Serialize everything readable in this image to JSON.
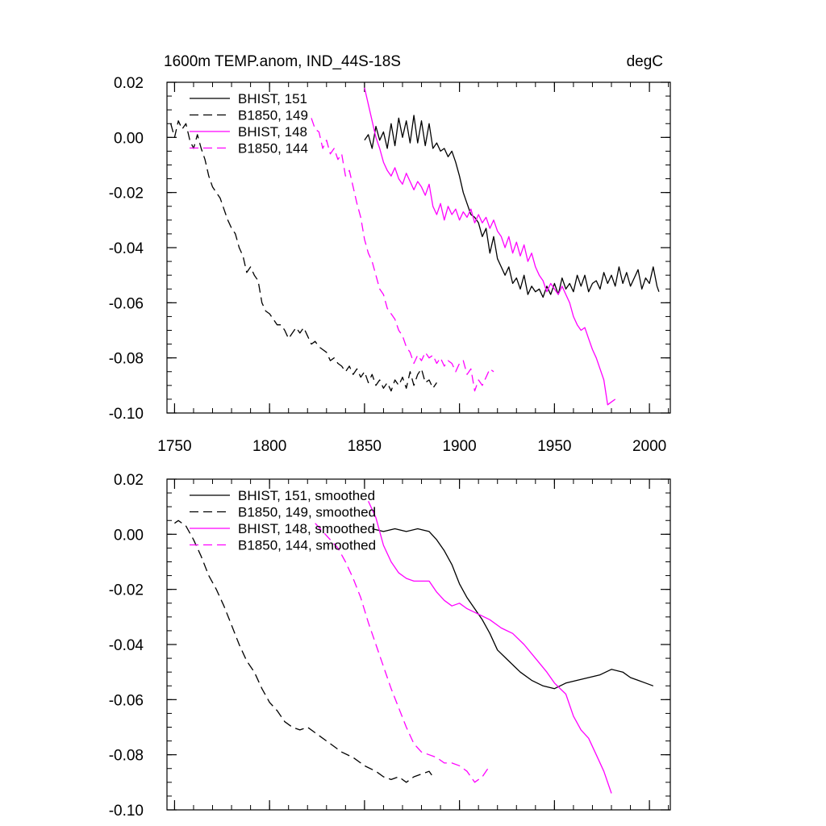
{
  "chart_data": [
    {
      "type": "line",
      "title": "1600m TEMP.anom, IND_44S-18S",
      "units": "degC",
      "xlim": [
        1746,
        2011
      ],
      "ylim": [
        -0.1,
        0.02
      ],
      "x_ticks": [
        "1750",
        "1800",
        "1850",
        "1900",
        "1950",
        "2000"
      ],
      "y_ticks": [
        "0.02",
        "0.00",
        "-0.02",
        "-0.04",
        "-0.06",
        "-0.08",
        "-0.10"
      ],
      "legend_position": "top-left",
      "series": [
        {
          "name": "BHIST, 151",
          "color": "#000000",
          "dash": "solid",
          "x": [
            1850,
            1852,
            1854,
            1856,
            1858,
            1860,
            1862,
            1864,
            1866,
            1868,
            1870,
            1872,
            1874,
            1876,
            1878,
            1880,
            1882,
            1884,
            1886,
            1888,
            1890,
            1892,
            1894,
            1896,
            1898,
            1900,
            1902,
            1904,
            1906,
            1908,
            1910,
            1912,
            1914,
            1916,
            1918,
            1920,
            1922,
            1924,
            1926,
            1928,
            1930,
            1932,
            1934,
            1936,
            1938,
            1940,
            1942,
            1944,
            1946,
            1948,
            1950,
            1952,
            1954,
            1956,
            1958,
            1960,
            1962,
            1964,
            1966,
            1968,
            1970,
            1972,
            1974,
            1976,
            1978,
            1980,
            1982,
            1984,
            1986,
            1988,
            1990,
            1992,
            1994,
            1996,
            1998,
            2000,
            2002,
            2004,
            2005
          ],
          "y": [
            -0.001,
            0.001,
            -0.004,
            0.004,
            -0.001,
            0.002,
            -0.004,
            0.005,
            -0.003,
            0.007,
            0.0,
            0.006,
            -0.002,
            0.008,
            -0.002,
            0.006,
            -0.003,
            0.005,
            -0.004,
            -0.002,
            -0.005,
            -0.004,
            -0.007,
            -0.005,
            -0.009,
            -0.014,
            -0.02,
            -0.024,
            -0.028,
            -0.029,
            -0.031,
            -0.036,
            -0.033,
            -0.042,
            -0.036,
            -0.044,
            -0.047,
            -0.05,
            -0.047,
            -0.053,
            -0.051,
            -0.055,
            -0.05,
            -0.057,
            -0.054,
            -0.056,
            -0.055,
            -0.058,
            -0.054,
            -0.057,
            -0.053,
            -0.057,
            -0.051,
            -0.055,
            -0.053,
            -0.056,
            -0.05,
            -0.054,
            -0.05,
            -0.056,
            -0.053,
            -0.052,
            -0.055,
            -0.049,
            -0.053,
            -0.05,
            -0.054,
            -0.047,
            -0.053,
            -0.049,
            -0.054,
            -0.051,
            -0.048,
            -0.055,
            -0.051,
            -0.053,
            -0.047,
            -0.054,
            -0.056
          ]
        },
        {
          "name": "B1850, 149",
          "color": "#000000",
          "dash": "dashed",
          "x": [
            1748,
            1750,
            1752,
            1754,
            1756,
            1758,
            1760,
            1762,
            1764,
            1766,
            1768,
            1770,
            1772,
            1774,
            1776,
            1778,
            1780,
            1782,
            1784,
            1786,
            1788,
            1790,
            1792,
            1794,
            1796,
            1798,
            1800,
            1802,
            1804,
            1806,
            1808,
            1810,
            1812,
            1814,
            1816,
            1818,
            1820,
            1822,
            1824,
            1826,
            1828,
            1830,
            1832,
            1834,
            1836,
            1838,
            1840,
            1842,
            1844,
            1846,
            1848,
            1850,
            1852,
            1854,
            1856,
            1858,
            1860,
            1862,
            1864,
            1866,
            1868,
            1870,
            1872,
            1874,
            1876,
            1878,
            1880,
            1882,
            1884,
            1886,
            1888
          ],
          "y": [
            0.005,
            0.0,
            0.006,
            0.003,
            0.005,
            -0.001,
            -0.004,
            0.001,
            -0.004,
            -0.008,
            -0.014,
            -0.018,
            -0.02,
            -0.022,
            -0.026,
            -0.03,
            -0.033,
            -0.035,
            -0.04,
            -0.043,
            -0.049,
            -0.047,
            -0.05,
            -0.052,
            -0.06,
            -0.063,
            -0.064,
            -0.066,
            -0.068,
            -0.068,
            -0.07,
            -0.073,
            -0.071,
            -0.069,
            -0.071,
            -0.069,
            -0.072,
            -0.075,
            -0.074,
            -0.076,
            -0.077,
            -0.078,
            -0.081,
            -0.08,
            -0.082,
            -0.083,
            -0.085,
            -0.083,
            -0.086,
            -0.084,
            -0.087,
            -0.085,
            -0.089,
            -0.086,
            -0.09,
            -0.088,
            -0.091,
            -0.089,
            -0.092,
            -0.088,
            -0.09,
            -0.087,
            -0.091,
            -0.085,
            -0.09,
            -0.086,
            -0.084,
            -0.089,
            -0.088,
            -0.091,
            -0.089
          ]
        },
        {
          "name": "BHIST, 148",
          "color": "#ff00ff",
          "dash": "solid",
          "x": [
            1850,
            1852,
            1854,
            1856,
            1858,
            1860,
            1862,
            1864,
            1866,
            1868,
            1870,
            1872,
            1874,
            1876,
            1878,
            1880,
            1882,
            1884,
            1886,
            1888,
            1890,
            1892,
            1894,
            1896,
            1898,
            1900,
            1902,
            1904,
            1906,
            1908,
            1910,
            1912,
            1914,
            1916,
            1918,
            1920,
            1922,
            1924,
            1926,
            1928,
            1930,
            1932,
            1934,
            1936,
            1938,
            1940,
            1942,
            1944,
            1946,
            1948,
            1950,
            1952,
            1954,
            1956,
            1958,
            1960,
            1962,
            1964,
            1966,
            1968,
            1970,
            1972,
            1974,
            1976,
            1978,
            1980,
            1982
          ],
          "y": [
            0.018,
            0.012,
            0.006,
            0.0,
            -0.004,
            -0.009,
            -0.012,
            -0.014,
            -0.011,
            -0.015,
            -0.017,
            -0.013,
            -0.016,
            -0.019,
            -0.016,
            -0.018,
            -0.021,
            -0.017,
            -0.025,
            -0.028,
            -0.024,
            -0.03,
            -0.025,
            -0.028,
            -0.026,
            -0.03,
            -0.027,
            -0.029,
            -0.026,
            -0.031,
            -0.028,
            -0.031,
            -0.029,
            -0.033,
            -0.03,
            -0.034,
            -0.036,
            -0.04,
            -0.036,
            -0.042,
            -0.038,
            -0.043,
            -0.039,
            -0.045,
            -0.042,
            -0.047,
            -0.05,
            -0.052,
            -0.056,
            -0.053,
            -0.055,
            -0.057,
            -0.054,
            -0.057,
            -0.06,
            -0.065,
            -0.068,
            -0.07,
            -0.069,
            -0.073,
            -0.077,
            -0.08,
            -0.084,
            -0.088,
            -0.097,
            -0.096,
            -0.095
          ]
        },
        {
          "name": "B1850, 144",
          "color": "#ff00ff",
          "dash": "dashed",
          "x": [
            1822,
            1824,
            1826,
            1828,
            1830,
            1832,
            1834,
            1836,
            1838,
            1840,
            1842,
            1844,
            1846,
            1848,
            1850,
            1852,
            1854,
            1856,
            1858,
            1860,
            1862,
            1864,
            1866,
            1868,
            1870,
            1872,
            1874,
            1876,
            1878,
            1880,
            1882,
            1884,
            1886,
            1888,
            1890,
            1892,
            1894,
            1896,
            1898,
            1900,
            1902,
            1904,
            1906,
            1908,
            1910,
            1912,
            1914,
            1916,
            1918
          ],
          "y": [
            0.007,
            0.003,
            0.002,
            -0.004,
            -0.001,
            -0.006,
            -0.004,
            -0.008,
            -0.006,
            -0.014,
            -0.012,
            -0.018,
            -0.024,
            -0.029,
            -0.037,
            -0.042,
            -0.045,
            -0.05,
            -0.055,
            -0.057,
            -0.062,
            -0.064,
            -0.066,
            -0.07,
            -0.072,
            -0.076,
            -0.078,
            -0.082,
            -0.079,
            -0.081,
            -0.078,
            -0.08,
            -0.079,
            -0.082,
            -0.08,
            -0.083,
            -0.081,
            -0.082,
            -0.085,
            -0.082,
            -0.081,
            -0.086,
            -0.084,
            -0.092,
            -0.088,
            -0.09,
            -0.087,
            -0.084,
            -0.085
          ]
        }
      ]
    },
    {
      "type": "line",
      "title": "",
      "xlim": [
        1746,
        2011
      ],
      "ylim": [
        -0.1,
        0.02
      ],
      "y_ticks": [
        "0.02",
        "0.00",
        "-0.02",
        "-0.04",
        "-0.06",
        "-0.08",
        "-0.10"
      ],
      "legend_position": "top-left",
      "series": [
        {
          "name": "BHIST, 151, smoothed",
          "color": "#000000",
          "dash": "solid",
          "x": [
            1854,
            1860,
            1866,
            1872,
            1878,
            1884,
            1888,
            1892,
            1896,
            1900,
            1904,
            1908,
            1912,
            1916,
            1920,
            1926,
            1932,
            1938,
            1944,
            1950,
            1956,
            1962,
            1968,
            1974,
            1980,
            1986,
            1990,
            1994,
            1998,
            2002
          ],
          "y": [
            0.002,
            0.001,
            0.002,
            0.001,
            0.002,
            0.001,
            -0.002,
            -0.006,
            -0.011,
            -0.018,
            -0.023,
            -0.027,
            -0.031,
            -0.036,
            -0.042,
            -0.046,
            -0.05,
            -0.053,
            -0.055,
            -0.056,
            -0.054,
            -0.053,
            -0.052,
            -0.051,
            -0.049,
            -0.05,
            -0.052,
            -0.053,
            -0.054,
            -0.055
          ]
        },
        {
          "name": "B1850, 149, smoothed",
          "color": "#000000",
          "dash": "dashed",
          "x": [
            1750,
            1752,
            1756,
            1760,
            1764,
            1768,
            1772,
            1776,
            1780,
            1784,
            1788,
            1792,
            1796,
            1800,
            1804,
            1808,
            1812,
            1816,
            1820,
            1826,
            1832,
            1838,
            1844,
            1850,
            1856,
            1860,
            1864,
            1868,
            1872,
            1876,
            1880,
            1884,
            1886
          ],
          "y": [
            0.004,
            0.005,
            0.003,
            -0.002,
            -0.008,
            -0.015,
            -0.02,
            -0.026,
            -0.033,
            -0.04,
            -0.046,
            -0.05,
            -0.056,
            -0.061,
            -0.064,
            -0.068,
            -0.07,
            -0.071,
            -0.07,
            -0.073,
            -0.076,
            -0.079,
            -0.081,
            -0.084,
            -0.086,
            -0.088,
            -0.089,
            -0.088,
            -0.09,
            -0.088,
            -0.087,
            -0.086,
            -0.088
          ]
        },
        {
          "name": "BHIST, 148, smoothed",
          "color": "#ff00ff",
          "dash": "solid",
          "x": [
            1852,
            1856,
            1860,
            1864,
            1868,
            1872,
            1876,
            1880,
            1884,
            1888,
            1892,
            1896,
            1900,
            1904,
            1910,
            1916,
            1922,
            1928,
            1934,
            1940,
            1946,
            1950,
            1956,
            1960,
            1964,
            1968,
            1972,
            1976,
            1980
          ],
          "y": [
            0.012,
            0.006,
            -0.004,
            -0.01,
            -0.014,
            -0.016,
            -0.017,
            -0.017,
            -0.017,
            -0.021,
            -0.024,
            -0.026,
            -0.025,
            -0.027,
            -0.029,
            -0.031,
            -0.034,
            -0.036,
            -0.04,
            -0.045,
            -0.05,
            -0.054,
            -0.058,
            -0.066,
            -0.071,
            -0.074,
            -0.08,
            -0.086,
            -0.094
          ]
        },
        {
          "name": "B1850, 144, smoothed",
          "color": "#ff00ff",
          "dash": "dashed",
          "x": [
            1824,
            1828,
            1832,
            1836,
            1840,
            1844,
            1848,
            1852,
            1856,
            1860,
            1864,
            1868,
            1872,
            1876,
            1880,
            1884,
            1888,
            1892,
            1896,
            1900,
            1904,
            1908,
            1912,
            1915
          ],
          "y": [
            0.004,
            0.001,
            -0.002,
            -0.005,
            -0.01,
            -0.016,
            -0.023,
            -0.032,
            -0.04,
            -0.048,
            -0.056,
            -0.063,
            -0.07,
            -0.076,
            -0.079,
            -0.08,
            -0.081,
            -0.083,
            -0.083,
            -0.084,
            -0.086,
            -0.09,
            -0.088,
            -0.085
          ]
        }
      ]
    }
  ]
}
